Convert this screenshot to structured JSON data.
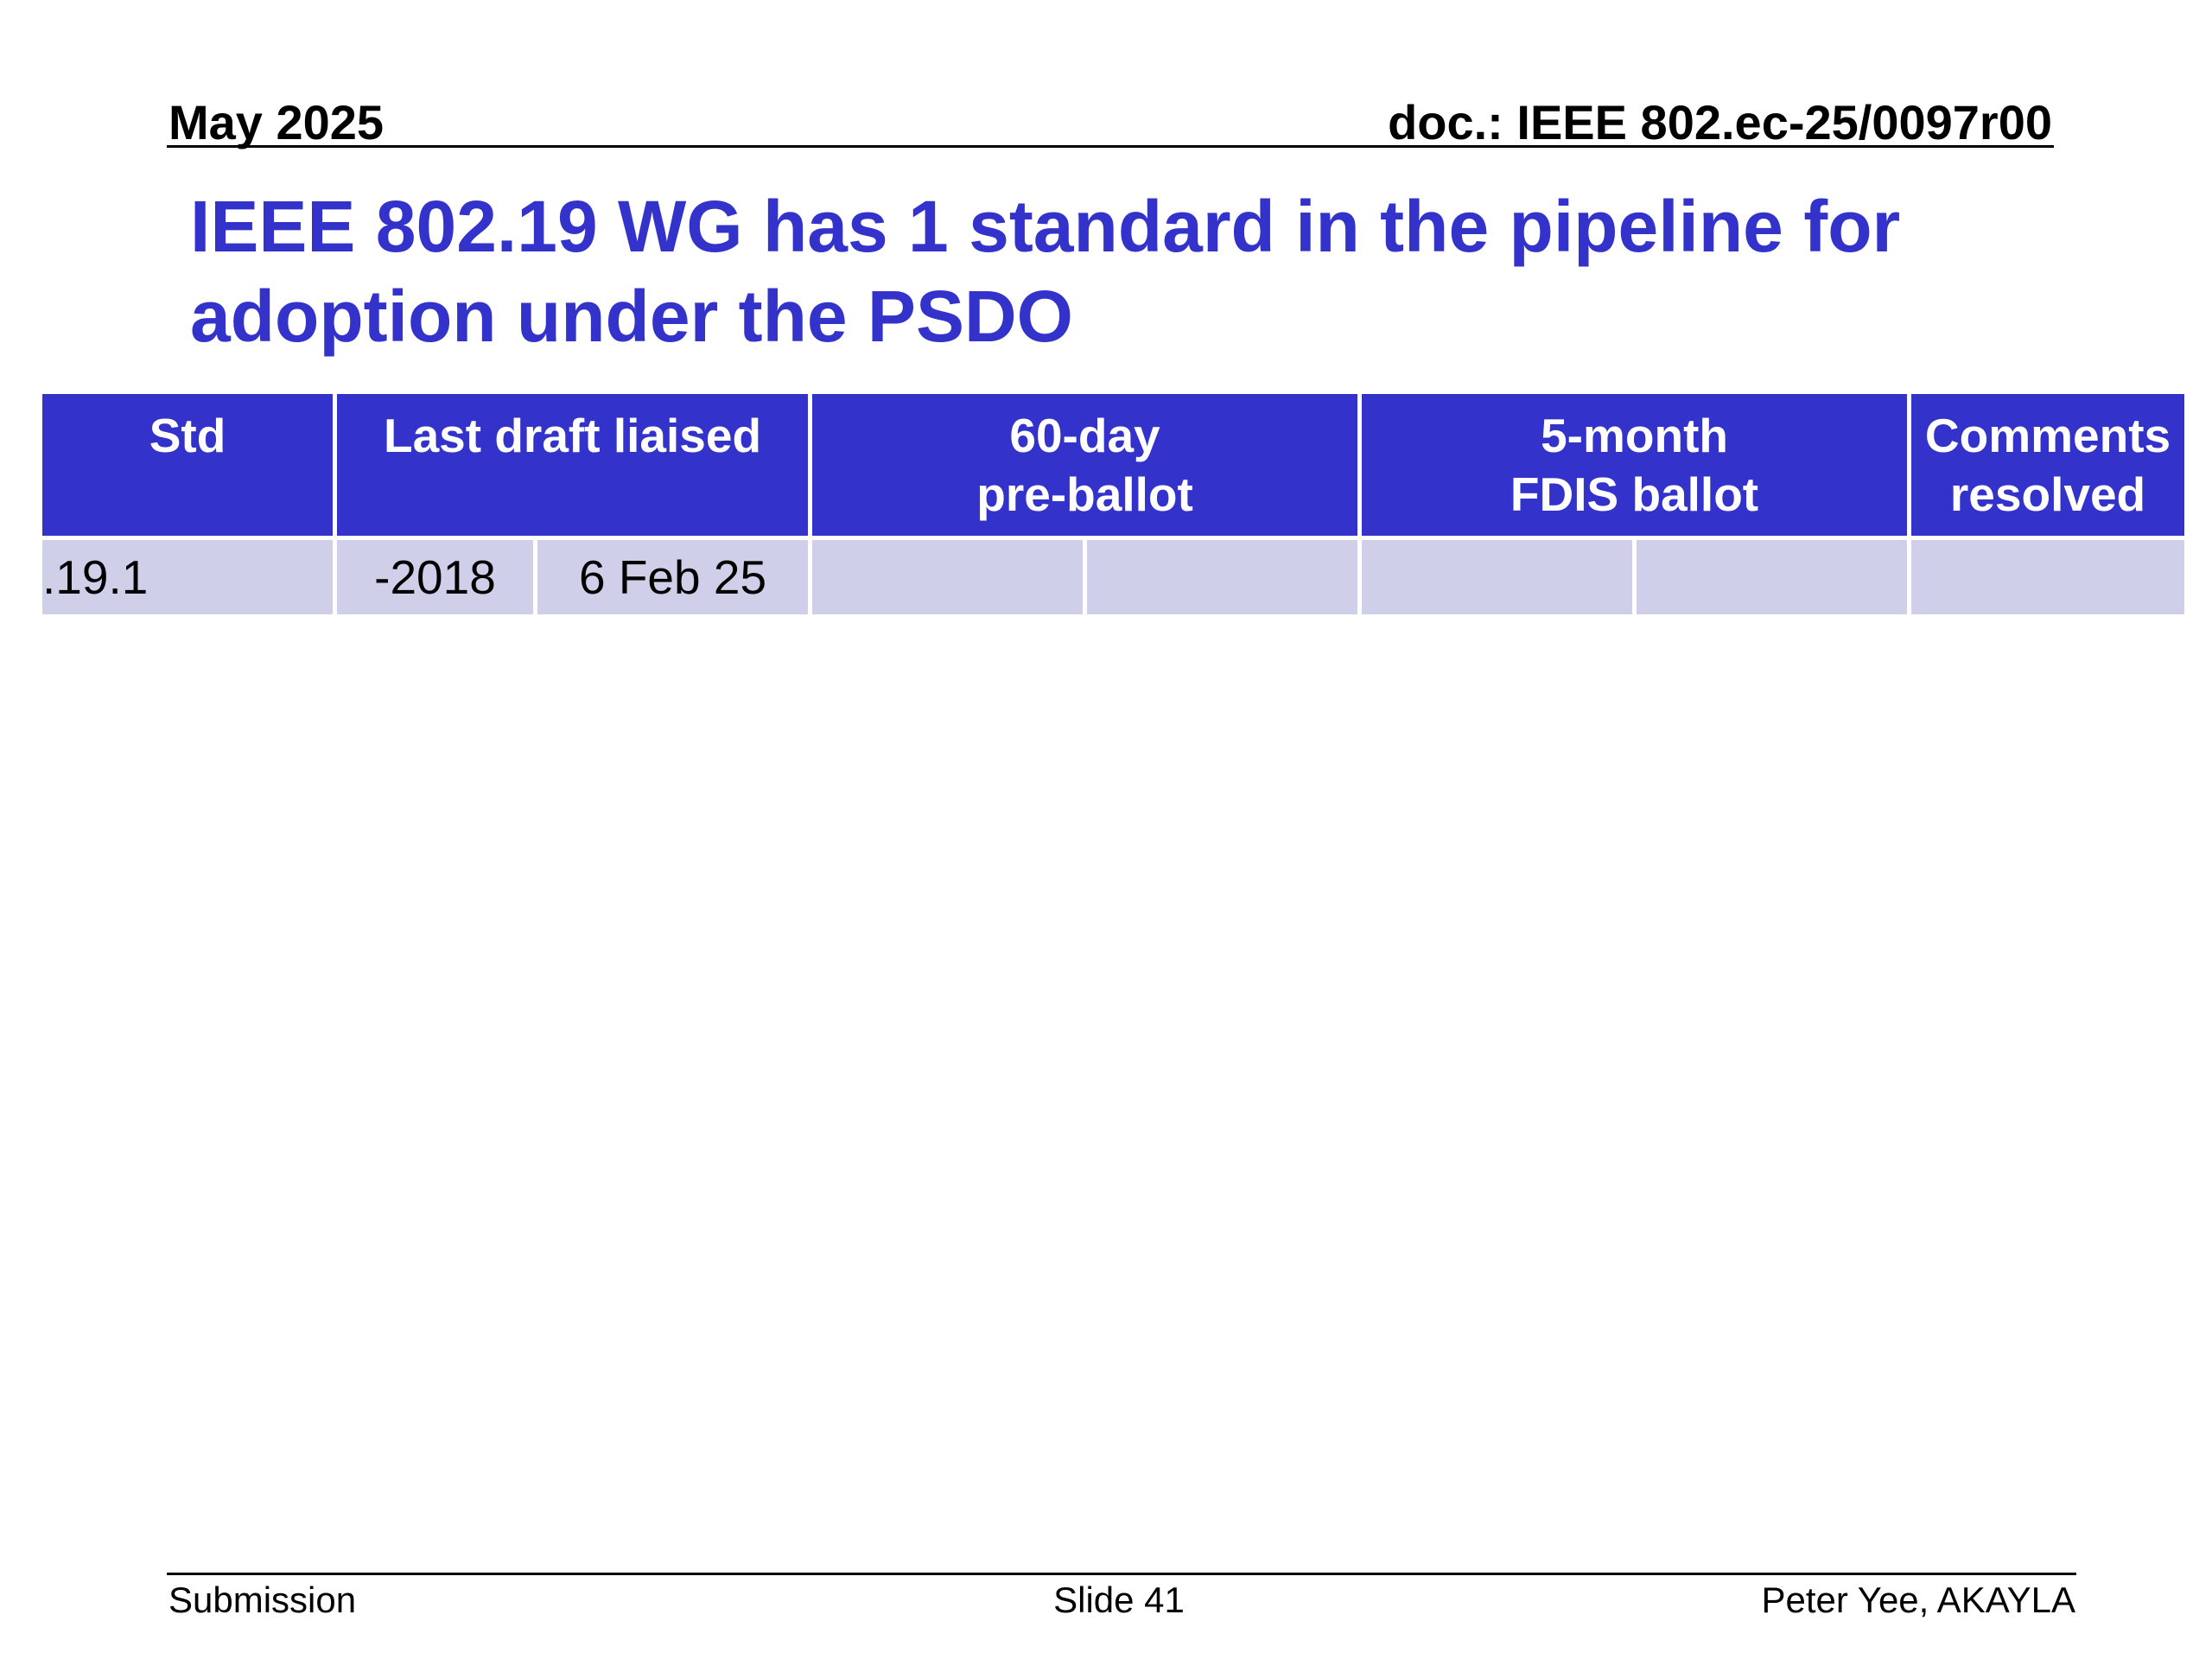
{
  "header": {
    "date": "May 2025",
    "doc_id": "doc.: IEEE 802.ec-25/0097r00"
  },
  "title": {
    "line1": "IEEE 802.19 WG has 1 standard in the pipeline for",
    "line2": "adoption under the PSDO"
  },
  "table": {
    "headers": {
      "std": "Std",
      "last_draft": "Last draft liaised",
      "pre_ballot": {
        "line1": "60-day",
        "line2": "pre-ballot"
      },
      "fdis_ballot": {
        "line1": "5-month",
        "line2": "FDIS ballot"
      },
      "comments": {
        "line1": "Comments",
        "line2": "resolved"
      }
    },
    "rows": [
      {
        "std": ".19.1",
        "draft": "-2018",
        "liaised_date": "6 Feb 25",
        "pre_ballot_a": "",
        "pre_ballot_b": "",
        "fdis_a": "",
        "fdis_b": "",
        "comments": ""
      }
    ]
  },
  "footer": {
    "left": "Submission",
    "center": "Slide 41",
    "right": "Peter Yee, AKAYLA"
  },
  "colors": {
    "title": "#3333cc",
    "header_fill": "#3333cc",
    "row_fill": "#cfcfe9"
  }
}
